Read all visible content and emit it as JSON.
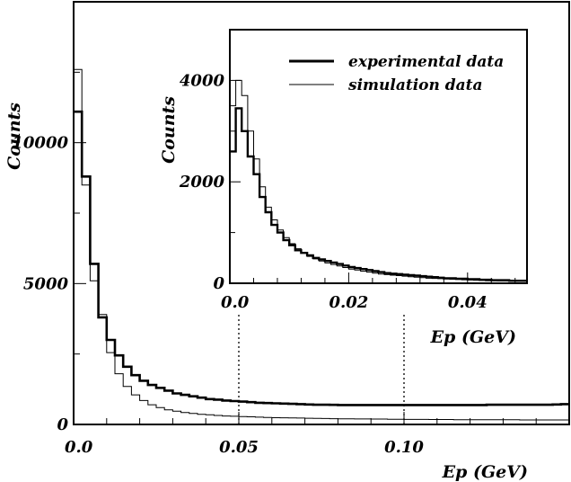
{
  "chart_data": [
    {
      "type": "histogram",
      "xlabel": "Ep (GeV)",
      "ylabel": "Counts",
      "xlim": [
        0,
        0.15
      ],
      "ylim": [
        0,
        15000
      ],
      "xticks": [
        0.0,
        0.05,
        0.1
      ],
      "xtick_labels": [
        "0.0",
        "0.05",
        "0.10"
      ],
      "yticks": [
        0,
        5000,
        10000
      ],
      "ytick_labels": [
        "0",
        "5000",
        "10000"
      ],
      "reference_lines_x": [
        0.05,
        0.1
      ],
      "bin_width": 0.0025,
      "series": [
        {
          "name": "experimental data",
          "style": "thick",
          "values": [
            11100,
            8800,
            5700,
            3800,
            3000,
            2450,
            2050,
            1750,
            1550,
            1400,
            1300,
            1200,
            1100,
            1050,
            1000,
            950,
            900,
            880,
            850,
            830,
            810,
            790,
            770,
            760,
            750,
            740,
            730,
            720,
            710,
            700,
            700,
            695,
            690,
            690,
            690,
            690,
            690,
            690,
            690,
            690,
            690,
            690,
            690,
            690,
            690,
            690,
            690,
            690,
            690,
            690,
            700,
            700,
            700,
            700,
            700,
            700,
            700,
            700,
            710,
            720
          ]
        },
        {
          "name": "simulation data",
          "style": "thin",
          "values": [
            12600,
            8500,
            5100,
            3900,
            2550,
            1800,
            1350,
            1050,
            850,
            700,
            600,
            520,
            470,
            420,
            390,
            360,
            340,
            320,
            300,
            290,
            280,
            270,
            260,
            250,
            240,
            235,
            230,
            225,
            220,
            215,
            210,
            205,
            200,
            200,
            195,
            195,
            190,
            190,
            185,
            185,
            180,
            180,
            180,
            175,
            175,
            175,
            170,
            170,
            170,
            170,
            165,
            165,
            165,
            165,
            160,
            160,
            160,
            160,
            160,
            160
          ]
        }
      ]
    },
    {
      "type": "histogram",
      "inset": true,
      "xlabel": "Ep (GeV)",
      "ylabel": "Counts",
      "xlim": [
        0,
        0.05
      ],
      "ylim": [
        0,
        5000
      ],
      "xticks": [
        0.0,
        0.02,
        0.04
      ],
      "xtick_labels": [
        "0.0",
        "0.02",
        "0.04"
      ],
      "yticks": [
        0,
        2000,
        4000
      ],
      "ytick_labels": [
        "0",
        "2000",
        "4000"
      ],
      "bin_width": 0.001,
      "legend": {
        "position": "top-right"
      },
      "series": [
        {
          "name": "experimental data",
          "style": "thick",
          "values": [
            2600,
            3450,
            3000,
            2500,
            2150,
            1700,
            1400,
            1150,
            1000,
            850,
            750,
            650,
            600,
            550,
            500,
            470,
            440,
            410,
            380,
            350,
            320,
            300,
            280,
            260,
            240,
            220,
            200,
            190,
            180,
            170,
            160,
            150,
            140,
            130,
            120,
            110,
            100,
            100,
            90,
            90,
            80,
            80,
            70,
            70,
            60,
            60,
            60,
            50,
            50,
            50
          ]
        },
        {
          "name": "simulation data",
          "style": "thin",
          "values": [
            3500,
            4000,
            3700,
            3000,
            2450,
            1900,
            1500,
            1250,
            1050,
            900,
            780,
            680,
            600,
            530,
            480,
            440,
            400,
            370,
            340,
            310,
            280,
            260,
            240,
            220,
            200,
            180,
            170,
            160,
            150,
            140,
            130,
            120,
            110,
            100,
            95,
            90,
            85,
            80,
            75,
            70,
            65,
            60,
            55,
            50,
            50,
            45,
            45,
            40,
            40,
            40
          ]
        }
      ]
    }
  ]
}
